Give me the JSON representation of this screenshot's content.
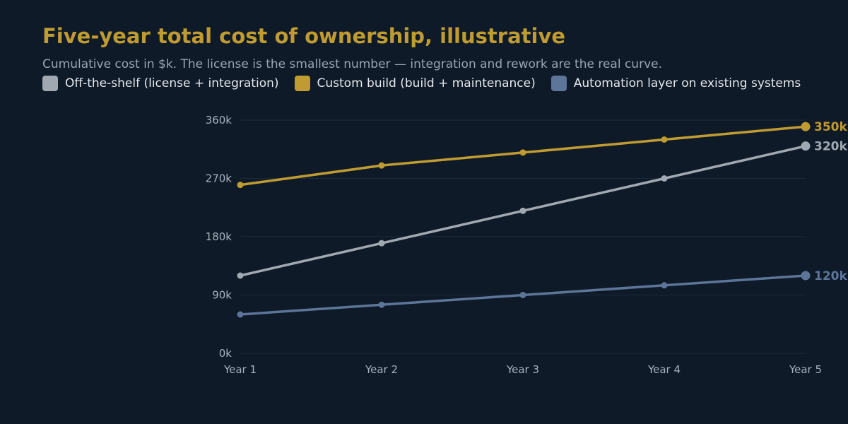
{
  "title": "Five-year total cost of ownership, illustrative",
  "subtitle": "Cumulative cost in $k. The license is the smallest number — integration and rework are the real curve.",
  "chart_data": {
    "type": "line",
    "title": "Five-year total cost of ownership, illustrative",
    "subtitle": "Cumulative cost in $k. The license is the smallest number — integration and rework are the real curve.",
    "categories": [
      "Year 1",
      "Year 2",
      "Year 3",
      "Year 4",
      "Year 5"
    ],
    "ylim": [
      0,
      360
    ],
    "yticks": [
      0,
      90,
      180,
      270,
      360
    ],
    "ytick_labels": [
      "0k",
      "90k",
      "180k",
      "270k",
      "360k"
    ],
    "xlabel": "",
    "ylabel": "",
    "grid": true,
    "legend_position": "top-left",
    "series": [
      {
        "name": "Off-the-shelf (license + integration)",
        "color": "#a0a8b2",
        "values": [
          120,
          170,
          220,
          270,
          320
        ],
        "end_label": "320k"
      },
      {
        "name": "Custom build (build + maintenance)",
        "color": "#c09b31",
        "values": [
          260,
          290,
          310,
          330,
          350
        ],
        "end_label": "350k"
      },
      {
        "name": "Automation layer on existing systems",
        "color": "#5d7599",
        "values": [
          60,
          75,
          90,
          105,
          120
        ],
        "end_label": "120k"
      }
    ]
  }
}
